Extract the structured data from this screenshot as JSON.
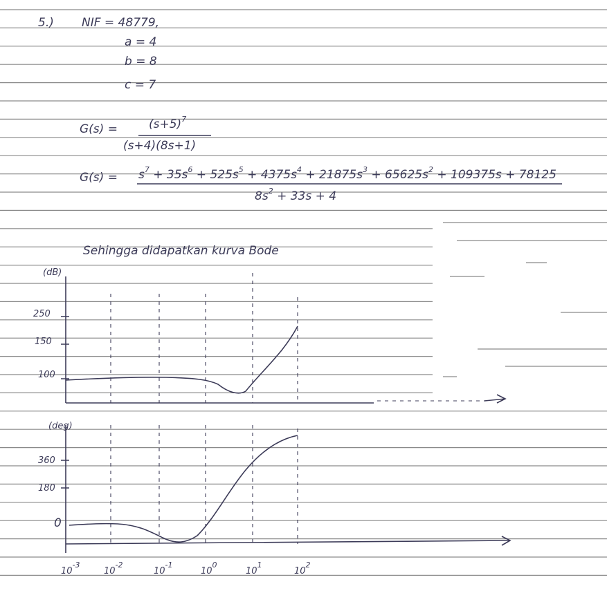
{
  "problem": {
    "number": "5.)",
    "nif": "NIF = 48779,",
    "params": [
      "a = 4",
      "b = 8",
      "c = 7"
    ]
  },
  "transfer_function": {
    "label": "G(s) =",
    "numerator": [
      {
        "text": "(s+5)",
        "sup": "7"
      }
    ],
    "denominator": [
      {
        "text": "(s+4)(8s+1)"
      }
    ]
  },
  "expanded": {
    "label": "G(s) =",
    "numerator": [
      {
        "text": "s",
        "sup": "7"
      },
      {
        "text": " + 35s",
        "sup": "6"
      },
      {
        "text": " + 525s",
        "sup": "5"
      },
      {
        "text": " + 4375s",
        "sup": "4"
      },
      {
        "text": " + 21875s",
        "sup": "3"
      },
      {
        "text": " + 65625s",
        "sup": "2"
      },
      {
        "text": " + 109375s + 78125"
      }
    ],
    "denominator": [
      {
        "text": "8s",
        "sup": "2"
      },
      {
        "text": " + 33s + 4"
      }
    ]
  },
  "caption": "Sehingga didapatkan kurva Bode",
  "magnitude_plot": {
    "unit": "(dB)",
    "y_labels": [
      "250",
      "150",
      "100"
    ]
  },
  "phase_plot": {
    "unit": "(deg)",
    "y_labels": [
      "360",
      "180",
      "0"
    ]
  },
  "x_labels": [
    {
      "base": "10",
      "exp": "-3"
    },
    {
      "base": "10",
      "exp": "-2"
    },
    {
      "base": "10",
      "exp": "-1"
    },
    {
      "base": "10",
      "exp": "0"
    },
    {
      "base": "10",
      "exp": "1"
    },
    {
      "base": "10",
      "exp": "2"
    }
  ]
}
